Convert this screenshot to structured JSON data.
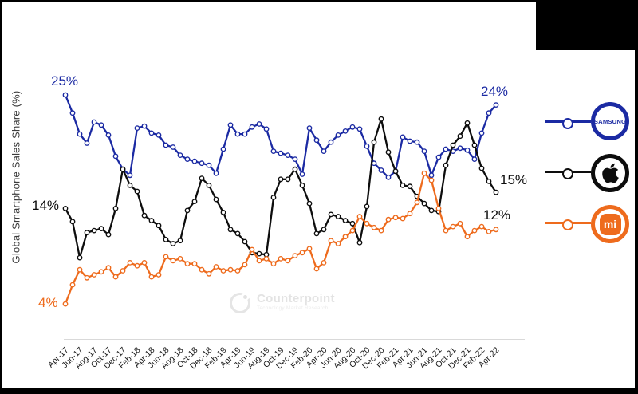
{
  "frame_color": "#000000",
  "watermark": {
    "title": "Counterpoint",
    "tagline": "Technology Market Research"
  },
  "legend": {
    "samsung_badge_text": "SAMSUNG",
    "mi_badge_text": "mi"
  },
  "chart_data": {
    "type": "line",
    "title": "",
    "xlabel": "",
    "ylabel": "Global Smartphone Sales Share (%)",
    "legend_position": "right",
    "grid": false,
    "x_tick_labels": [
      "Apr-17",
      "Jun-17",
      "Aug-17",
      "Oct-17",
      "Dec-17",
      "Feb-18",
      "Apr-18",
      "Jun-18",
      "Aug-18",
      "Oct-18",
      "Dec-18",
      "Feb-19",
      "Apr-19",
      "Jun-19",
      "Aug-19",
      "Oct-19",
      "Dec-19",
      "Feb-20",
      "Apr-20",
      "Jun-20",
      "Aug-20",
      "Oct-20",
      "Dec-20",
      "Feb-21",
      "Apr-21",
      "Jun-21",
      "Aug-21",
      "Oct-21",
      "Dec-21",
      "Feb-22",
      "Apr-22"
    ],
    "months": [
      "Apr-17",
      "May-17",
      "Jun-17",
      "Jul-17",
      "Aug-17",
      "Sep-17",
      "Oct-17",
      "Nov-17",
      "Dec-17",
      "Jan-18",
      "Feb-18",
      "Mar-18",
      "Apr-18",
      "May-18",
      "Jun-18",
      "Jul-18",
      "Aug-18",
      "Sep-18",
      "Oct-18",
      "Nov-18",
      "Dec-18",
      "Jan-19",
      "Feb-19",
      "Mar-19",
      "Apr-19",
      "May-19",
      "Jun-19",
      "Jul-19",
      "Aug-19",
      "Sep-19",
      "Oct-19",
      "Nov-19",
      "Dec-19",
      "Jan-20",
      "Feb-20",
      "Mar-20",
      "Apr-20",
      "May-20",
      "Jun-20",
      "Jul-20",
      "Aug-20",
      "Sep-20",
      "Oct-20",
      "Nov-20",
      "Dec-20",
      "Jan-21",
      "Feb-21",
      "Mar-21",
      "Apr-21",
      "May-21",
      "Jun-21",
      "Jul-21",
      "Aug-21",
      "Sep-21",
      "Oct-21",
      "Nov-21",
      "Dec-21",
      "Jan-22",
      "Feb-22",
      "Mar-22",
      "Apr-22"
    ],
    "series": [
      {
        "name": "Samsung",
        "color": "#1b2aa3",
        "start_label": "25%",
        "end_label": "24%",
        "values": [
          25.0,
          23.2,
          21.1,
          20.2,
          22.3,
          22.0,
          21.0,
          18.9,
          17.6,
          17.0,
          21.7,
          21.9,
          21.2,
          21.0,
          20.0,
          19.8,
          19.0,
          18.6,
          18.4,
          18.2,
          18.0,
          17.2,
          19.6,
          22.0,
          21.1,
          21.1,
          21.8,
          22.1,
          21.6,
          19.4,
          19.2,
          19.0,
          18.6,
          17.1,
          21.7,
          20.5,
          19.4,
          20.3,
          21.0,
          21.4,
          21.8,
          21.6,
          19.9,
          18.2,
          17.5,
          16.8,
          17.4,
          20.8,
          20.4,
          20.3,
          19.4,
          17.0,
          18.8,
          19.6,
          19.4,
          19.7,
          19.5,
          18.6,
          21.2,
          23.2,
          24.0
        ]
      },
      {
        "name": "Apple",
        "color": "#0d0d0d",
        "start_label": "14%",
        "end_label": "15%",
        "values": [
          13.7,
          12.4,
          8.8,
          11.3,
          11.5,
          11.7,
          11.1,
          13.7,
          17.6,
          16.0,
          15.4,
          13.0,
          12.5,
          12.0,
          10.6,
          10.2,
          10.5,
          13.5,
          14.4,
          16.7,
          16.0,
          14.6,
          13.3,
          11.6,
          11.2,
          10.4,
          9.3,
          9.2,
          9.1,
          14.8,
          16.6,
          16.6,
          17.6,
          16.0,
          14.2,
          11.2,
          11.6,
          13.1,
          12.9,
          12.5,
          12.2,
          10.3,
          13.9,
          20.3,
          22.6,
          19.3,
          17.4,
          16.0,
          15.9,
          14.9,
          14.2,
          13.5,
          13.4,
          18.0,
          20.0,
          20.9,
          22.2,
          20.0,
          17.7,
          16.4,
          15.3
        ]
      },
      {
        "name": "Xiaomi",
        "color": "#ee6b1d",
        "start_label": "4%",
        "end_label": "12%",
        "values": [
          4.2,
          6.1,
          7.6,
          6.8,
          7.1,
          7.4,
          7.8,
          6.9,
          7.5,
          8.3,
          8.0,
          8.3,
          6.9,
          7.1,
          8.9,
          8.5,
          8.7,
          8.2,
          8.2,
          7.6,
          7.2,
          7.9,
          7.5,
          7.6,
          7.5,
          8.1,
          9.6,
          8.5,
          8.7,
          8.2,
          8.7,
          8.5,
          9.0,
          9.3,
          9.7,
          7.7,
          8.3,
          10.5,
          10.2,
          10.9,
          11.5,
          12.9,
          12.2,
          11.8,
          11.5,
          12.6,
          12.8,
          12.7,
          13.2,
          14.3,
          17.2,
          16.5,
          13.7,
          11.5,
          11.9,
          12.2,
          10.9,
          11.5,
          11.9,
          11.4,
          11.6
        ]
      }
    ]
  }
}
